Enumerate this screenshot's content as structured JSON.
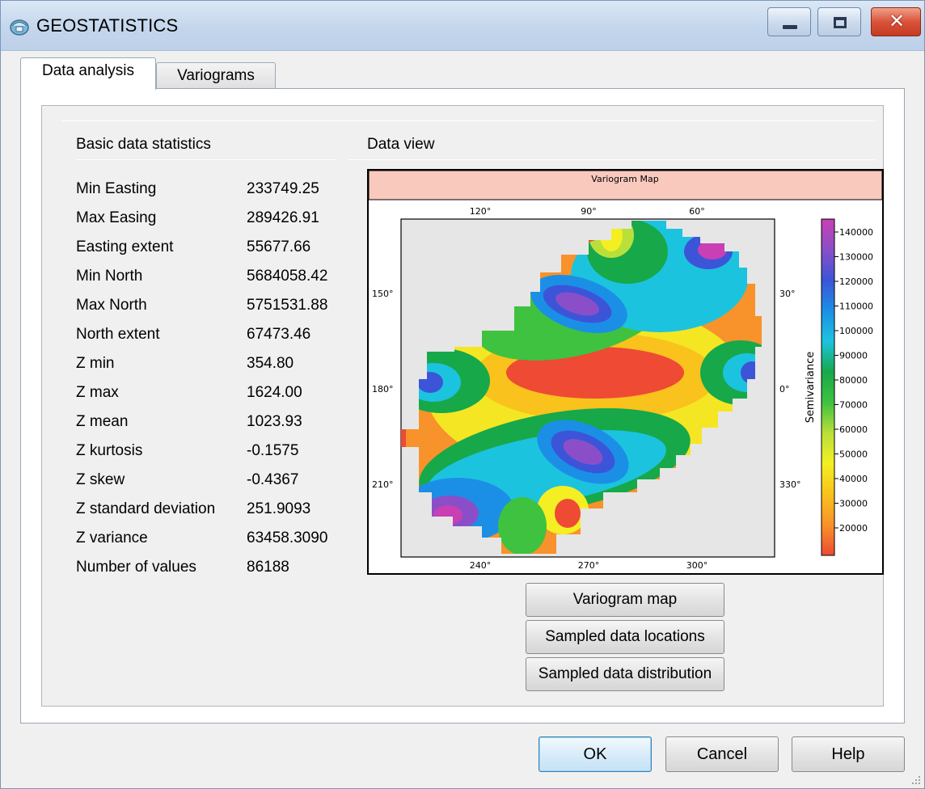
{
  "window": {
    "title": "GEOSTATISTICS",
    "controls": {
      "minimize": "minimize",
      "maximize": "maximize",
      "close": "✕"
    }
  },
  "tabs": [
    {
      "label": "Data analysis",
      "active": true
    },
    {
      "label": "Variograms",
      "active": false
    }
  ],
  "stats": {
    "heading": "Basic data statistics",
    "rows": [
      {
        "label": "Min Easting",
        "value": "233749.25"
      },
      {
        "label": "Max Easing",
        "value": "289426.91"
      },
      {
        "label": "Easting extent",
        "value": "55677.66"
      },
      {
        "label": "Min North",
        "value": "5684058.42"
      },
      {
        "label": "Max North",
        "value": "5751531.88"
      },
      {
        "label": "North extent",
        "value": "67473.46"
      },
      {
        "label": "Z min",
        "value": "354.80"
      },
      {
        "label": "Z max",
        "value": "1624.00"
      },
      {
        "label": "Z mean",
        "value": "1023.93"
      },
      {
        "label": "Z kurtosis",
        "value": "-0.1575"
      },
      {
        "label": "Z skew",
        "value": "-0.4367"
      },
      {
        "label": "Z standard deviation",
        "value": "251.9093"
      },
      {
        "label": "Z variance",
        "value": "63458.3090"
      },
      {
        "label": "Number of values",
        "value": "86188"
      }
    ]
  },
  "data_view": {
    "heading": "Data view",
    "map_title": "Variogram Map",
    "angle_labels": {
      "top": [
        "120°",
        "90°",
        "60°"
      ],
      "left": [
        "150°",
        "180°",
        "210°"
      ],
      "right": [
        "30°",
        "0°",
        "330°"
      ],
      "bottom": [
        "240°",
        "270°",
        "300°"
      ]
    },
    "colorbar": {
      "label": "Semivariance",
      "ticks": [
        "140000",
        "130000",
        "120000",
        "110000",
        "100000",
        "90000",
        "80000",
        "70000",
        "60000",
        "50000",
        "40000",
        "30000",
        "20000"
      ],
      "colors_top_to_bottom": [
        "#c93fb4",
        "#8a4fc8",
        "#3c55d8",
        "#1b8fe6",
        "#1cc3df",
        "#17a84a",
        "#3fc23f",
        "#b9e03a",
        "#f4ef22",
        "#f9c21c",
        "#f8922a",
        "#ee4a34"
      ]
    }
  },
  "view_buttons": [
    "Variogram map",
    "Sampled data locations",
    "Sampled data distribution"
  ],
  "dialog_buttons": {
    "ok": "OK",
    "cancel": "Cancel",
    "help": "Help"
  },
  "colors": {
    "title_bar": "#c4d6ec",
    "map_title_band": "#f9c9be",
    "map_background": "#e6e6e6",
    "ok_border": "#3c7fb1"
  }
}
